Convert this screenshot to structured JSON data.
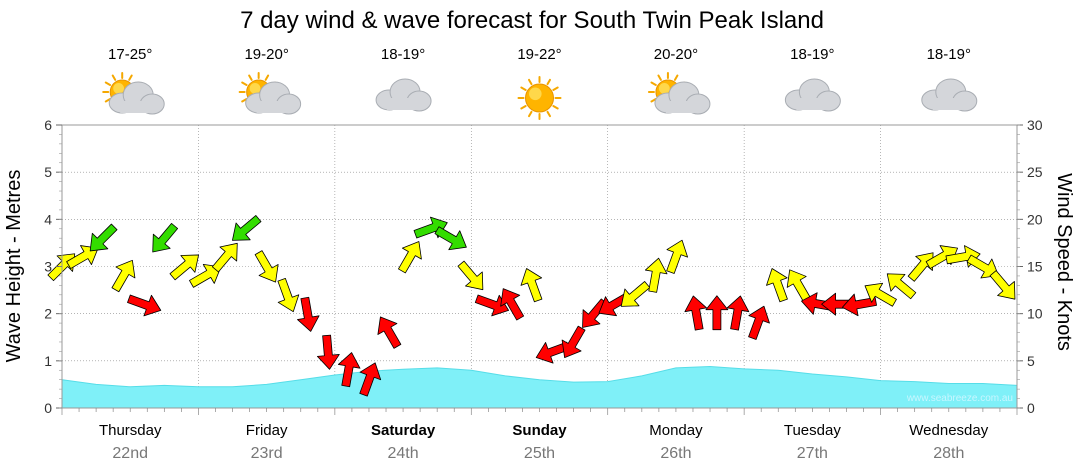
{
  "chart_data": {
    "type": "line",
    "title": "7 day wind & wave forecast for South Twin Peak Island",
    "ylabel_left": "Wave Height - Metres",
    "ylabel_right": "Wind Speed - Knots",
    "ylim_left": [
      0,
      6
    ],
    "ylim_right": [
      0,
      30
    ],
    "yticks_left": [
      "0",
      "1",
      "2",
      "3",
      "4",
      "5",
      "6"
    ],
    "yticks_right": [
      "0",
      "5",
      "10",
      "15",
      "20",
      "25",
      "30"
    ],
    "watermark": "www.seabreeze.com.au",
    "colors": {
      "wave_fill": "#7ff0f8",
      "wave_line": "#56dde8",
      "wind_low": "#ffff00",
      "wind_mid": "#33dd00",
      "wind_high": "#ff0000",
      "grid": "#888888"
    },
    "days": [
      {
        "name": "Thursday",
        "date": "22nd",
        "temp": "17-25°",
        "icon": "sun-cloud-icon",
        "bold": false
      },
      {
        "name": "Friday",
        "date": "23rd",
        "temp": "19-20°",
        "icon": "sun-cloud-icon",
        "bold": false
      },
      {
        "name": "Saturday",
        "date": "24th",
        "temp": "18-19°",
        "icon": "cloud-icon",
        "bold": true
      },
      {
        "name": "Sunday",
        "date": "25th",
        "temp": "19-22°",
        "icon": "sun-icon",
        "bold": true
      },
      {
        "name": "Monday",
        "date": "26th",
        "temp": "20-20°",
        "icon": "sun-cloud-icon",
        "bold": false
      },
      {
        "name": "Tuesday",
        "date": "27th",
        "temp": "18-19°",
        "icon": "cloud-icon",
        "bold": false
      },
      {
        "name": "Wednesday",
        "date": "28th",
        "temp": "18-19°",
        "icon": "cloud-icon",
        "bold": false
      }
    ],
    "wave_series": {
      "name": "Wave Height",
      "units": "m",
      "x_days": [
        0,
        0.25,
        0.5,
        0.75,
        1.0,
        1.25,
        1.5,
        1.75,
        2.0,
        2.25,
        2.5,
        2.75,
        3.0,
        3.25,
        3.5,
        3.75,
        4.0,
        4.25,
        4.5,
        4.75,
        5.0,
        5.25,
        5.5,
        5.75,
        6.0,
        6.25,
        6.5,
        6.75,
        7.0
      ],
      "values": [
        0.6,
        0.5,
        0.45,
        0.48,
        0.45,
        0.45,
        0.5,
        0.6,
        0.7,
        0.78,
        0.82,
        0.85,
        0.8,
        0.68,
        0.6,
        0.55,
        0.56,
        0.68,
        0.85,
        0.88,
        0.83,
        0.8,
        0.72,
        0.66,
        0.58,
        0.56,
        0.52,
        0.52,
        0.48
      ]
    },
    "wind_series": {
      "name": "Wind Speed",
      "units": "knots",
      "x_days": [
        0,
        0.15,
        0.3,
        0.45,
        0.6,
        0.75,
        0.9,
        1.05,
        1.2,
        1.35,
        1.5,
        1.65,
        1.8,
        1.95,
        2.1,
        2.25,
        2.4,
        2.55,
        2.7,
        2.85,
        3.0,
        3.15,
        3.3,
        3.45,
        3.6,
        3.75,
        3.9,
        4.05,
        4.2,
        4.35,
        4.5,
        4.65,
        4.8,
        4.95,
        5.1,
        5.25,
        5.4,
        5.55,
        5.7,
        5.85,
        6.0,
        6.15,
        6.3,
        6.45,
        6.6,
        6.75,
        6.9
      ],
      "values": [
        15,
        16,
        18,
        14,
        11,
        18,
        15,
        14,
        16,
        19,
        15,
        12,
        10,
        6,
        4,
        3,
        8,
        16,
        19,
        18,
        14,
        11,
        11,
        13,
        6,
        7,
        10,
        11,
        12,
        14,
        16,
        10,
        10,
        10,
        9,
        13,
        13,
        11,
        11,
        11,
        12,
        13,
        15,
        16,
        16,
        15,
        13
      ],
      "directions_deg": [
        45,
        60,
        225,
        30,
        110,
        220,
        50,
        60,
        40,
        230,
        150,
        160,
        170,
        175,
        10,
        20,
        330,
        30,
        70,
        120,
        140,
        110,
        330,
        340,
        250,
        210,
        220,
        240,
        230,
        10,
        20,
        350,
        0,
        10,
        20,
        340,
        330,
        280,
        270,
        260,
        300,
        310,
        40,
        60,
        80,
        120,
        140
      ]
    }
  }
}
